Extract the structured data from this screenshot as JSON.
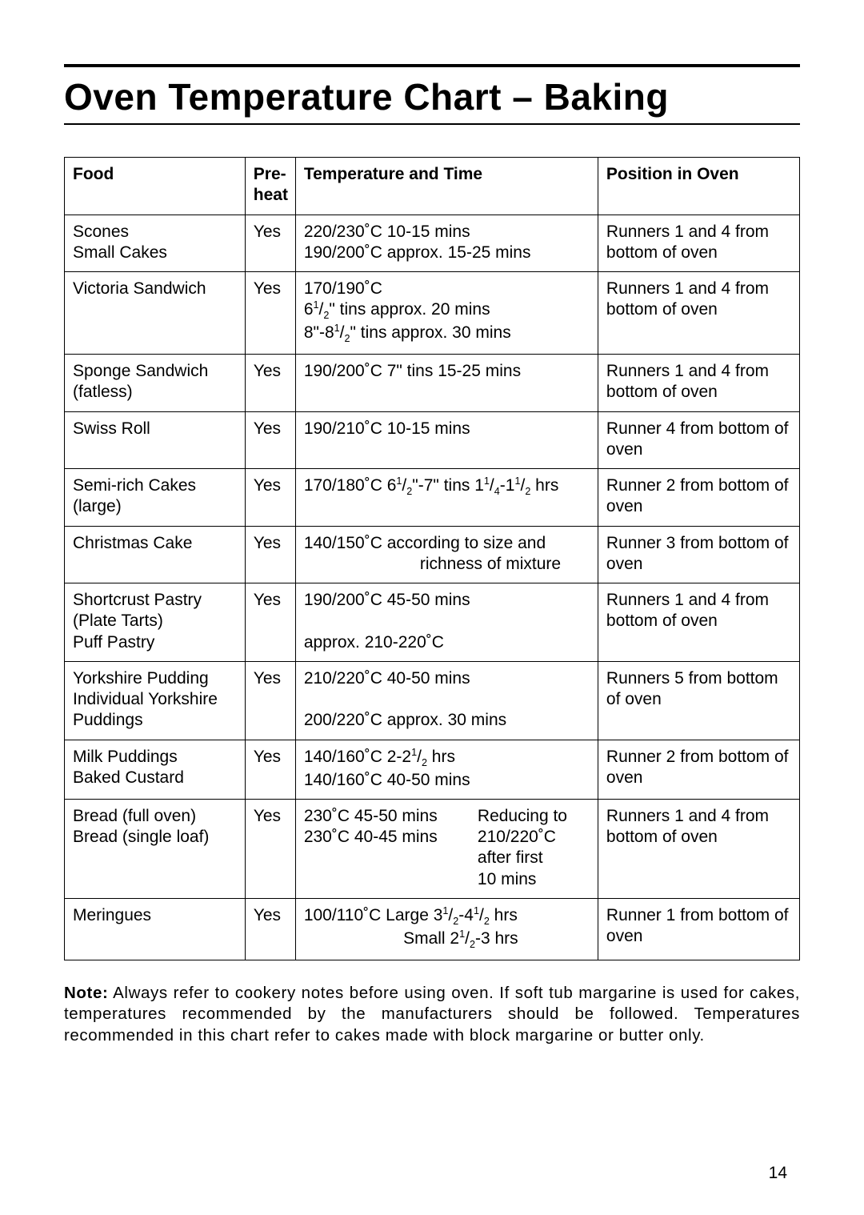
{
  "title": "Oven Temperature Chart – Baking",
  "headers": {
    "food": "Food",
    "preheat": "Pre-\nheat",
    "temp": "Temperature and Time",
    "position": "Position in Oven"
  },
  "rows": [
    {
      "food": "Scones\nSmall Cakes",
      "preheat": "Yes",
      "temp_lines": [
        "220/230˚C 10-15 mins",
        "190/200˚C approx. 15-25 mins"
      ],
      "position": "Runners 1 and 4 from bottom of oven"
    },
    {
      "food": "Victoria Sandwich",
      "preheat": "Yes",
      "temp_lines": [
        "170/190˚C",
        "6¹/₂\" tins approx. 20 mins",
        "8\"-8¹/₂\" tins approx. 30 mins"
      ],
      "position": "Runners 1 and 4 from bottom of oven"
    },
    {
      "food": "Sponge Sandwich (fatless)",
      "preheat": "Yes",
      "temp_lines": [
        "190/200˚C 7\" tins 15-25 mins"
      ],
      "position": "Runners 1 and 4 from bottom of oven"
    },
    {
      "food": "Swiss Roll",
      "preheat": "Yes",
      "temp_lines": [
        "190/210˚C 10-15 mins"
      ],
      "position": "Runner 4 from bottom of oven"
    },
    {
      "food": "Semi-rich Cakes (large)",
      "preheat": "Yes",
      "temp_lines": [
        "170/180˚C 6¹/₂\"-7\" tins 1¹/₄-1¹/₂ hrs"
      ],
      "position": "Runner 2 from bottom of oven"
    },
    {
      "food": "Christmas Cake",
      "preheat": "Yes",
      "temp_lines": [
        "140/150˚C according to size and",
        "                       richness of mixture"
      ],
      "temp_align": [
        "left",
        "center-right"
      ],
      "position": "Runner 3 from bottom of oven"
    },
    {
      "food": "Shortcrust Pastry (Plate Tarts)\nPuff Pastry",
      "preheat": "Yes",
      "temp_lines": [
        "190/200˚C 45-50 mins",
        "",
        "approx. 210-220˚C"
      ],
      "position": "Runners 1 and 4 from bottom of oven"
    },
    {
      "food": "Yorkshire Pudding\nIndividual Yorkshire Puddings",
      "preheat": "Yes",
      "temp_lines": [
        "210/220˚C 40-50 mins",
        "",
        "200/220˚C approx. 30 mins"
      ],
      "position": "Runners 5 from bottom of oven"
    },
    {
      "food": "Milk Puddings\nBaked Custard",
      "preheat": "Yes",
      "temp_lines": [
        "140/160˚C 2-2¹/₂ hrs",
        "140/160˚C 40-50 mins"
      ],
      "position": "Runner 2 from bottom of oven"
    },
    {
      "food": "Bread (full oven)\nBread (single loaf)",
      "preheat": "Yes",
      "temp_twocol": {
        "left": [
          "230˚C 45-50 mins",
          "230˚C 40-45 mins"
        ],
        "right": [
          "Reducing to",
          "210/220˚C",
          "after first",
          "10 mins"
        ]
      },
      "position": "Runners 1 and 4 from bottom of oven"
    },
    {
      "food": "Meringues",
      "preheat": "Yes",
      "temp_lines": [
        "100/110˚C Large 3¹/₂-4¹/₂ hrs",
        "                      Small 2¹/₂-3 hrs"
      ],
      "temp_align": [
        "left",
        "center"
      ],
      "position": "Runner 1 from bottom of oven"
    }
  ],
  "note_label": "Note:",
  "note_text": " Always refer to cookery notes before using oven. If soft tub margarine is used for cakes, temperatures recommended by the manufacturers should be followed. Temperatures recommended in this chart refer to cakes made with block margarine or butter only.",
  "page_number": "14",
  "colors": {
    "text": "#000000",
    "bg": "#ffffff",
    "border": "#000000"
  }
}
